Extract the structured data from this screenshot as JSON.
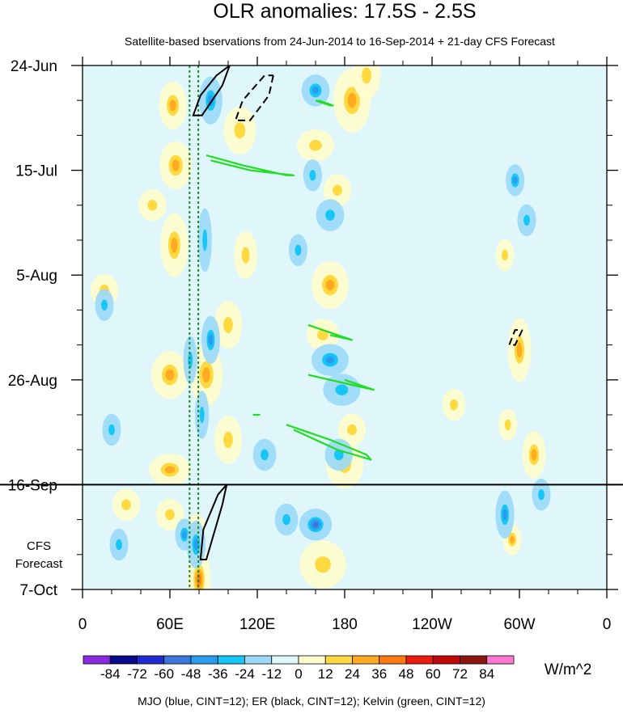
{
  "chart_data": {
    "type": "heatmap",
    "title": "OLR anomalies: 17.5S - 2.5S",
    "subtitle": "Satellite-based bservations from 24-Jun-2014 to 16-Sep-2014 + 21-day CFS Forecast",
    "x_axis": {
      "range_lon_east": [
        0,
        360
      ],
      "ticks": [
        {
          "lon": 0,
          "label": "0"
        },
        {
          "lon": 60,
          "label": "60E"
        },
        {
          "lon": 120,
          "label": "120E"
        },
        {
          "lon": 180,
          "label": "180"
        },
        {
          "lon": 240,
          "label": "120W"
        },
        {
          "lon": 300,
          "label": "60W"
        },
        {
          "lon": 360,
          "label": "0"
        }
      ]
    },
    "y_axis": {
      "range_days": [
        0,
        105
      ],
      "start_date": "24-Jun-2014",
      "ticks": [
        {
          "day": 0,
          "label": "24-Jun"
        },
        {
          "day": 21,
          "label": "15-Jul"
        },
        {
          "day": 42,
          "label": "5-Aug"
        },
        {
          "day": 63,
          "label": "26-Aug"
        },
        {
          "day": 84,
          "label": "16-Sep"
        },
        {
          "day": 105,
          "label": "7-Oct"
        }
      ]
    },
    "forecast_start_day": 84,
    "forecast_label_line1": "CFS",
    "forecast_label_line2": "Forecast",
    "colorbar": {
      "unit": "W/m^2",
      "levels": [
        -84,
        -72,
        -60,
        -48,
        -36,
        -24,
        -12,
        0,
        12,
        24,
        36,
        48,
        60,
        72,
        84
      ],
      "colors": [
        "#8a2be2",
        "#0a0a8c",
        "#1e2bd0",
        "#3c78dc",
        "#2b9bf0",
        "#18c6f5",
        "#9ad8f8",
        "#dff7fb",
        "#fffccc",
        "#ffd940",
        "#ffaa20",
        "#ff7a10",
        "#ee1c10",
        "#c00808",
        "#8f1410",
        "#ff7ad0"
      ]
    },
    "footnote": "MJO (blue, CINT=12); ER (black, CINT=12); Kelvin (green, CINT=12)",
    "features": [
      {
        "type": "positive",
        "lon": 62,
        "day": 8,
        "rx": 6,
        "rd": 3,
        "level": 2
      },
      {
        "type": "positive",
        "lon": 64,
        "day": 20,
        "rx": 7,
        "rd": 3,
        "level": 2
      },
      {
        "type": "positive",
        "lon": 63,
        "day": 36,
        "rx": 6,
        "rd": 4,
        "level": 2
      },
      {
        "type": "positive",
        "lon": 60,
        "day": 62,
        "rx": 8,
        "rd": 3,
        "level": 2
      },
      {
        "type": "positive",
        "lon": 60,
        "day": 81,
        "rx": 9,
        "rd": 2,
        "level": 2
      },
      {
        "type": "positive",
        "lon": 48,
        "day": 28,
        "rx": 6,
        "rd": 2,
        "level": 1
      },
      {
        "type": "positive",
        "lon": 80,
        "day": 103,
        "rx": 5,
        "rd": 4,
        "level": 3
      },
      {
        "type": "positive",
        "lon": 78,
        "day": 93,
        "rx": 4,
        "rd": 2,
        "level": 2
      },
      {
        "type": "positive",
        "lon": 85,
        "day": 62,
        "rx": 7,
        "rd": 4,
        "level": 2
      },
      {
        "type": "positive",
        "lon": 100,
        "day": 52,
        "rx": 6,
        "rd": 3,
        "level": 1
      },
      {
        "type": "positive",
        "lon": 112,
        "day": 38,
        "rx": 5,
        "rd": 3,
        "level": 1
      },
      {
        "type": "positive",
        "lon": 108,
        "day": 13,
        "rx": 7,
        "rd": 3,
        "level": 1
      },
      {
        "type": "positive",
        "lon": 100,
        "day": 75,
        "rx": 6,
        "rd": 3,
        "level": 1
      },
      {
        "type": "positive",
        "lon": 160,
        "day": 16,
        "rx": 8,
        "rd": 2,
        "level": 1
      },
      {
        "type": "positive",
        "lon": 170,
        "day": 44,
        "rx": 8,
        "rd": 3,
        "level": 2
      },
      {
        "type": "positive",
        "lon": 165,
        "day": 54,
        "rx": 7,
        "rd": 2,
        "level": 1
      },
      {
        "type": "positive",
        "lon": 185,
        "day": 7,
        "rx": 8,
        "rd": 4,
        "level": 2
      },
      {
        "type": "positive",
        "lon": 175,
        "day": 25,
        "rx": 6,
        "rd": 2,
        "level": 1
      },
      {
        "type": "positive",
        "lon": 195,
        "day": 2,
        "rx": 6,
        "rd": 3,
        "level": 1
      },
      {
        "type": "positive",
        "lon": 185,
        "day": 73,
        "rx": 6,
        "rd": 2,
        "level": 1
      },
      {
        "type": "positive",
        "lon": 180,
        "day": 80,
        "rx": 8,
        "rd": 3,
        "level": 1
      },
      {
        "type": "positive",
        "lon": 165,
        "day": 100,
        "rx": 10,
        "rd": 3,
        "level": 1
      },
      {
        "type": "positive",
        "lon": 300,
        "day": 57,
        "rx": 5,
        "rd": 4,
        "level": 2
      },
      {
        "type": "positive",
        "lon": 310,
        "day": 78,
        "rx": 5,
        "rd": 3,
        "level": 2
      },
      {
        "type": "positive",
        "lon": 292,
        "day": 72,
        "rx": 4,
        "rd": 2,
        "level": 1
      },
      {
        "type": "positive",
        "lon": 295,
        "day": 95,
        "rx": 4,
        "rd": 2,
        "level": 2
      },
      {
        "type": "positive",
        "lon": 290,
        "day": 38,
        "rx": 4,
        "rd": 2,
        "level": 1
      },
      {
        "type": "positive",
        "lon": 15,
        "day": 45,
        "rx": 6,
        "rd": 2,
        "level": 1
      },
      {
        "type": "positive",
        "lon": 30,
        "day": 88,
        "rx": 6,
        "rd": 2,
        "level": 1
      },
      {
        "type": "positive",
        "lon": 60,
        "day": 90,
        "rx": 6,
        "rd": 2,
        "level": 1
      },
      {
        "type": "positive",
        "lon": 255,
        "day": 68,
        "rx": 5,
        "rd": 2,
        "level": 1
      },
      {
        "type": "negative",
        "lon": 88,
        "day": 7,
        "rx": 5,
        "rd": 3,
        "level": 2
      },
      {
        "type": "negative",
        "lon": 84,
        "day": 35,
        "rx": 3,
        "rd": 4,
        "level": 1
      },
      {
        "type": "negative",
        "lon": 88,
        "day": 55,
        "rx": 4,
        "rd": 3,
        "level": 2
      },
      {
        "type": "negative",
        "lon": 82,
        "day": 70,
        "rx": 3,
        "rd": 3,
        "level": 1
      },
      {
        "type": "negative",
        "lon": 74,
        "day": 59,
        "rx": 3,
        "rd": 3,
        "level": 1
      },
      {
        "type": "negative",
        "lon": 70,
        "day": 94,
        "rx": 4,
        "rd": 2,
        "level": 2
      },
      {
        "type": "negative",
        "lon": 78,
        "day": 96,
        "rx": 4,
        "rd": 3,
        "level": 2
      },
      {
        "type": "negative",
        "lon": 160,
        "day": 5,
        "rx": 6,
        "rd": 2,
        "level": 2
      },
      {
        "type": "negative",
        "lon": 170,
        "day": 30,
        "rx": 6,
        "rd": 2,
        "level": 1
      },
      {
        "type": "negative",
        "lon": 158,
        "day": 22,
        "rx": 4,
        "rd": 2,
        "level": 1
      },
      {
        "type": "negative",
        "lon": 148,
        "day": 37,
        "rx": 4,
        "rd": 2,
        "level": 1
      },
      {
        "type": "negative",
        "lon": 170,
        "day": 59,
        "rx": 8,
        "rd": 2,
        "level": 2
      },
      {
        "type": "negative",
        "lon": 178,
        "day": 65,
        "rx": 8,
        "rd": 2,
        "level": 1
      },
      {
        "type": "negative",
        "lon": 160,
        "day": 92,
        "rx": 7,
        "rd": 2,
        "level": 3
      },
      {
        "type": "negative",
        "lon": 140,
        "day": 91,
        "rx": 5,
        "rd": 2,
        "level": 1
      },
      {
        "type": "negative",
        "lon": 176,
        "day": 78,
        "rx": 6,
        "rd": 2,
        "level": 1
      },
      {
        "type": "negative",
        "lon": 297,
        "day": 23,
        "rx": 4,
        "rd": 2,
        "level": 2
      },
      {
        "type": "negative",
        "lon": 305,
        "day": 31,
        "rx": 4,
        "rd": 2,
        "level": 1
      },
      {
        "type": "negative",
        "lon": 290,
        "day": 90,
        "rx": 4,
        "rd": 3,
        "level": 2
      },
      {
        "type": "negative",
        "lon": 315,
        "day": 86,
        "rx": 4,
        "rd": 2,
        "level": 1
      },
      {
        "type": "negative",
        "lon": 20,
        "day": 73,
        "rx": 4,
        "rd": 2,
        "level": 1
      },
      {
        "type": "negative",
        "lon": 25,
        "day": 96,
        "rx": 4,
        "rd": 2,
        "level": 1
      },
      {
        "type": "negative",
        "lon": 15,
        "day": 48,
        "rx": 4,
        "rd": 2,
        "level": 1
      },
      {
        "type": "negative",
        "lon": 125,
        "day": 78,
        "rx": 5,
        "rd": 2,
        "level": 1
      }
    ],
    "mjo_lines": [
      {
        "lon": 73.5,
        "day_start": 0,
        "day_end": 105
      },
      {
        "lon": 79.5,
        "day_start": 0,
        "day_end": 105
      }
    ],
    "er_contours": [
      {
        "style": "solid",
        "points": [
          [
            101,
            0
          ],
          [
            96,
            4
          ],
          [
            82,
            10
          ],
          [
            76,
            10
          ],
          [
            81,
            6
          ],
          [
            92,
            2
          ]
        ]
      },
      {
        "style": "dashed",
        "points": [
          [
            131,
            2
          ],
          [
            128,
            6
          ],
          [
            115,
            11
          ],
          [
            105,
            11
          ],
          [
            110,
            7
          ],
          [
            125,
            2
          ]
        ]
      },
      {
        "style": "solid",
        "points": [
          [
            99,
            84
          ],
          [
            96,
            88
          ],
          [
            85,
            99
          ],
          [
            81,
            99
          ],
          [
            83,
            93
          ],
          [
            93,
            86
          ]
        ]
      },
      {
        "style": "dashed",
        "points": [
          [
            302,
            53
          ],
          [
            297,
            56
          ],
          [
            293,
            56
          ],
          [
            297,
            53
          ]
        ]
      }
    ],
    "kelvin_contours": [
      {
        "points": [
          [
            85,
            18
          ],
          [
            110,
            20
          ],
          [
            140,
            22
          ],
          [
            145,
            22
          ],
          [
            115,
            21
          ],
          [
            88,
            19
          ]
        ]
      },
      {
        "points": [
          [
            160,
            7
          ],
          [
            170,
            8
          ],
          [
            172,
            8
          ],
          [
            162,
            7
          ]
        ]
      },
      {
        "points": [
          [
            155,
            52
          ],
          [
            175,
            54
          ],
          [
            185,
            55
          ],
          [
            170,
            54
          ]
        ]
      },
      {
        "points": [
          [
            155,
            62
          ],
          [
            185,
            64
          ],
          [
            200,
            65
          ],
          [
            180,
            63
          ]
        ]
      },
      {
        "points": [
          [
            140,
            72
          ],
          [
            170,
            75
          ],
          [
            195,
            78
          ],
          [
            198,
            79
          ],
          [
            175,
            77
          ],
          [
            145,
            73
          ]
        ]
      },
      {
        "points": [
          [
            117,
            70
          ],
          [
            122,
            70
          ]
        ]
      }
    ]
  }
}
